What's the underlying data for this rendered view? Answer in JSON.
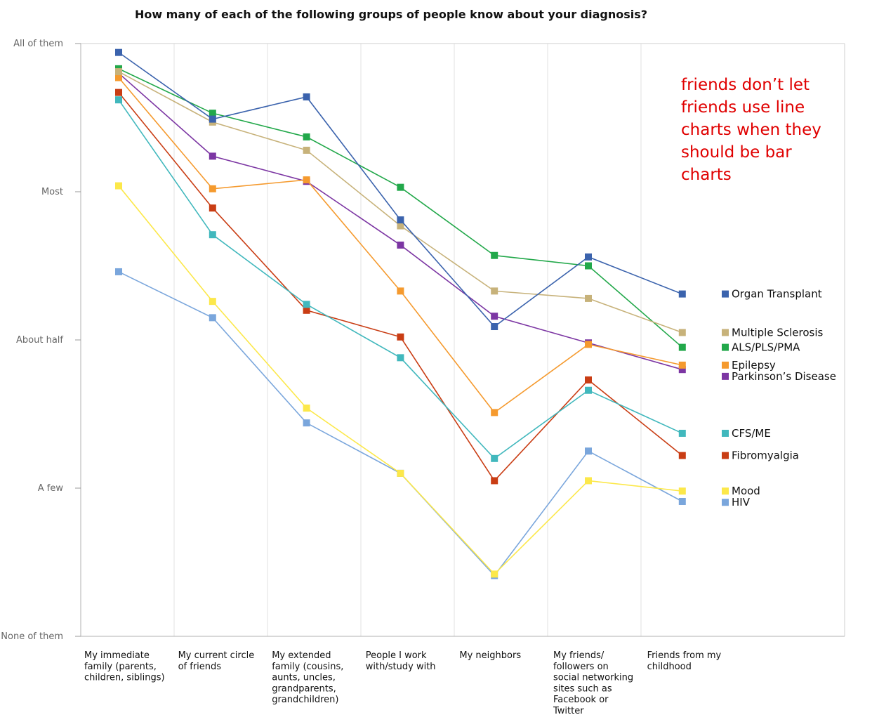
{
  "chart_data": {
    "type": "line",
    "title": "How many of each of the following groups of people know about your diagnosis?",
    "xlabel": "",
    "ylabel": "",
    "ylim": [
      0,
      4
    ],
    "y_ticks": [
      "None of them",
      "A few",
      "About half",
      "Most",
      "All of them"
    ],
    "grid": "vertical",
    "legend_position": "right",
    "categories": [
      [
        "My immediate",
        "family (parents,",
        "children, siblings)"
      ],
      [
        "My current circle",
        "of friends"
      ],
      [
        "My extended",
        "family (cousins,",
        "aunts, uncles,",
        "grandparents,",
        "grandchildren)"
      ],
      [
        "People I work",
        "with/study with"
      ],
      [
        "My neighbors"
      ],
      [
        "My friends/",
        "followers on",
        "social networking",
        "sites such as",
        "Facebook or",
        "Twitter"
      ],
      [
        "Friends from my",
        "childhood"
      ]
    ],
    "series": [
      {
        "name": "Organ Transplant",
        "color": "#3b63ad",
        "values": [
          3.94,
          3.49,
          3.64,
          2.81,
          2.09,
          2.56,
          2.31
        ]
      },
      {
        "name": "Multiple Sclerosis",
        "color": "#c7b27a",
        "values": [
          3.81,
          3.47,
          3.28,
          2.77,
          2.33,
          2.28,
          2.05
        ]
      },
      {
        "name": "ALS/PLS/PMA",
        "color": "#22a84a",
        "values": [
          3.83,
          3.53,
          3.37,
          3.03,
          2.57,
          2.5,
          1.95
        ]
      },
      {
        "name": "Epilepsy",
        "color": "#f59a2e",
        "values": [
          3.77,
          3.02,
          3.08,
          2.33,
          1.51,
          1.97,
          1.83
        ]
      },
      {
        "name": "Parkinson’s Disease",
        "color": "#7c36a3",
        "values": [
          3.8,
          3.24,
          3.07,
          2.64,
          2.16,
          1.98,
          1.8
        ]
      },
      {
        "name": "CFS/ME",
        "color": "#41b8bd",
        "values": [
          3.62,
          2.71,
          2.24,
          1.88,
          1.2,
          1.66,
          1.37
        ]
      },
      {
        "name": "Fibromyalgia",
        "color": "#c93d14",
        "values": [
          3.67,
          2.89,
          2.2,
          2.02,
          1.05,
          1.73,
          1.22
        ]
      },
      {
        "name": "Mood",
        "color": "#fce84a",
        "values": [
          3.04,
          2.26,
          1.54,
          1.1,
          0.42,
          1.05,
          0.98
        ]
      },
      {
        "name": "HIV",
        "color": "#7aa6dc",
        "values": [
          2.46,
          2.15,
          1.44,
          1.1,
          0.41,
          1.25,
          0.91
        ]
      }
    ],
    "annotation": [
      "friends don’t let",
      "friends use line",
      "charts when they",
      "should be bar",
      "charts"
    ]
  }
}
